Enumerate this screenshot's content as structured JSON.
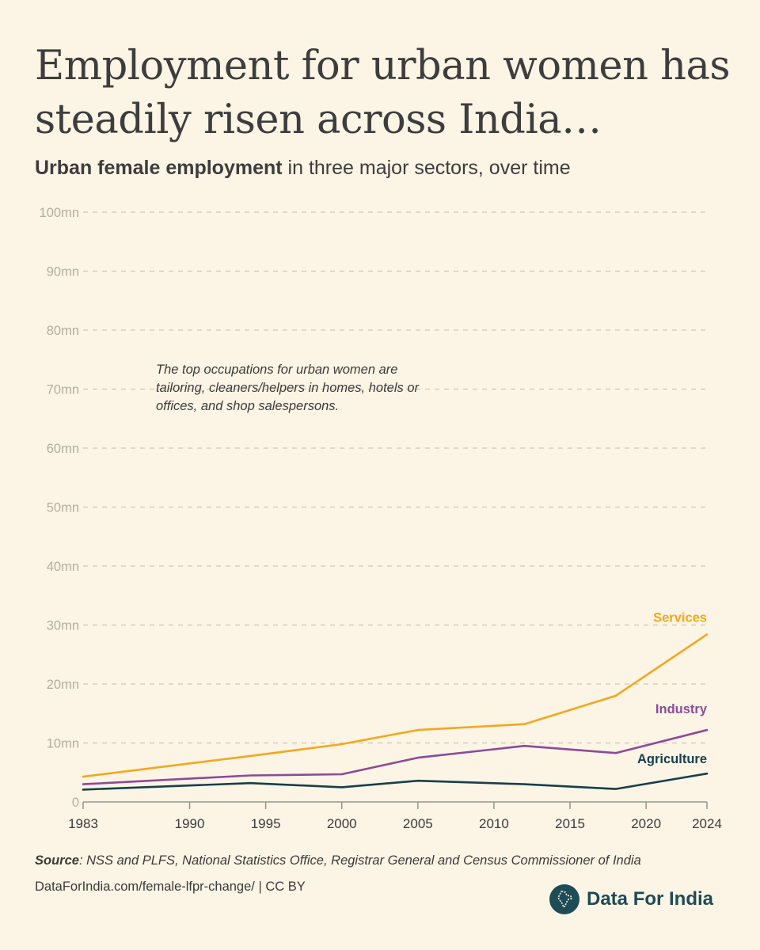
{
  "header": {
    "title": "Employment for urban women has steadily risen across India…",
    "subtitle_bold": "Urban female employment",
    "subtitle_rest": "in three major sectors, over time"
  },
  "annotation": "The top occupations for urban women are tailoring, cleaners/helpers in homes, hotels or offices, and shop salespersons.",
  "footer": {
    "source_label": "Source",
    "source_text": ": NSS and PLFS, National Statistics Office, Registrar General and Census Commissioner of India",
    "link_text": "DataForIndia.com/female-lfpr-change/  |  CC BY",
    "brand_name": "Data For India"
  },
  "chart_data": {
    "type": "line",
    "title": "Urban female employment in three major sectors, over time",
    "xlabel": "",
    "ylabel": "",
    "xlim": [
      1983,
      2024
    ],
    "ylim": [
      0,
      100
    ],
    "x_ticks": [
      1983,
      1990,
      1995,
      2000,
      2005,
      2010,
      2015,
      2020,
      2024
    ],
    "y_ticks": [
      0,
      10,
      20,
      30,
      40,
      50,
      60,
      70,
      80,
      90,
      100
    ],
    "y_tick_labels": [
      "0",
      "10mn",
      "20mn",
      "30mn",
      "40mn",
      "50mn",
      "60mn",
      "70mn",
      "80mn",
      "90mn",
      "100mn"
    ],
    "grid": true,
    "series": [
      {
        "name": "Services",
        "color": "#f2a81d",
        "x": [
          1983,
          1994,
          2000,
          2005,
          2012,
          2018,
          2024
        ],
        "values": [
          4.3,
          7.8,
          9.8,
          12.2,
          13.2,
          18.0,
          28.4
        ]
      },
      {
        "name": "Industry",
        "color": "#8c4a97",
        "x": [
          1983,
          1994,
          2000,
          2005,
          2012,
          2018,
          2024
        ],
        "values": [
          3.0,
          4.5,
          4.7,
          7.5,
          9.5,
          8.3,
          12.2
        ]
      },
      {
        "name": "Agriculture",
        "color": "#163f4d",
        "x": [
          1983,
          1994,
          2000,
          2005,
          2012,
          2018,
          2024
        ],
        "values": [
          2.1,
          3.2,
          2.5,
          3.6,
          3.0,
          2.2,
          4.8
        ]
      }
    ]
  }
}
